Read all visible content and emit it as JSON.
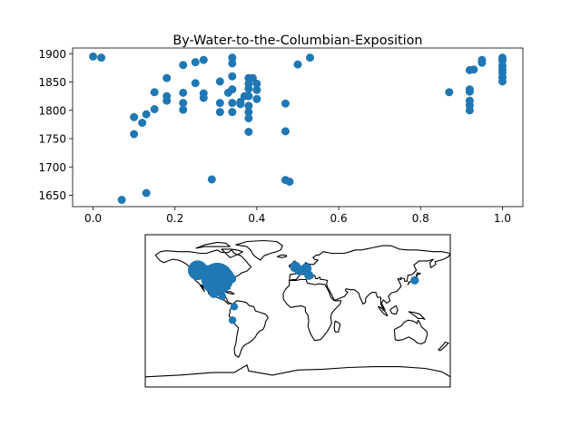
{
  "chart_data": [
    {
      "type": "scatter",
      "title": "By-Water-to-the-Columbian-Exposition",
      "xlabel": "",
      "ylabel": "",
      "xlim": [
        -0.05,
        1.05
      ],
      "ylim": [
        1630,
        1910
      ],
      "xticks": [
        "0.0",
        "0.2",
        "0.4",
        "0.6",
        "0.8",
        "1.0"
      ],
      "yticks": [
        "1650",
        "1700",
        "1750",
        "1800",
        "1850",
        "1900"
      ],
      "marker_color": "#1f77b4",
      "grid": false,
      "series": [
        {
          "points": [
            [
              0.0,
              1895
            ],
            [
              0.02,
              1893
            ],
            [
              0.07,
              1642
            ],
            [
              0.13,
              1654
            ],
            [
              0.1,
              1788
            ],
            [
              0.1,
              1758
            ],
            [
              0.13,
              1793
            ],
            [
              0.12,
              1778
            ],
            [
              0.15,
              1832
            ],
            [
              0.15,
              1802
            ],
            [
              0.18,
              1857
            ],
            [
              0.18,
              1825
            ],
            [
              0.18,
              1817
            ],
            [
              0.22,
              1880
            ],
            [
              0.22,
              1831
            ],
            [
              0.22,
              1813
            ],
            [
              0.22,
              1801
            ],
            [
              0.25,
              1885
            ],
            [
              0.25,
              1848
            ],
            [
              0.27,
              1889
            ],
            [
              0.27,
              1830
            ],
            [
              0.27,
              1822
            ],
            [
              0.29,
              1678
            ],
            [
              0.31,
              1851
            ],
            [
              0.31,
              1813
            ],
            [
              0.31,
              1797
            ],
            [
              0.34,
              1893
            ],
            [
              0.34,
              1883
            ],
            [
              0.34,
              1860
            ],
            [
              0.34,
              1837
            ],
            [
              0.33,
              1831
            ],
            [
              0.34,
              1813
            ],
            [
              0.34,
              1797
            ],
            [
              0.36,
              1811
            ],
            [
              0.36,
              1815
            ],
            [
              0.37,
              1825
            ],
            [
              0.38,
              1857
            ],
            [
              0.38,
              1847
            ],
            [
              0.38,
              1838
            ],
            [
              0.38,
              1825
            ],
            [
              0.38,
              1808
            ],
            [
              0.38,
              1797
            ],
            [
              0.38,
              1786
            ],
            [
              0.38,
              1762
            ],
            [
              0.39,
              1857
            ],
            [
              0.4,
              1847
            ],
            [
              0.4,
              1836
            ],
            [
              0.4,
              1820
            ],
            [
              0.47,
              1812
            ],
            [
              0.47,
              1763
            ],
            [
              0.47,
              1677
            ],
            [
              0.48,
              1674
            ],
            [
              0.5,
              1881
            ],
            [
              0.53,
              1893
            ],
            [
              0.87,
              1832
            ],
            [
              0.92,
              1871
            ],
            [
              0.93,
              1872
            ],
            [
              0.92,
              1837
            ],
            [
              0.92,
              1833
            ],
            [
              0.92,
              1817
            ],
            [
              0.92,
              1809
            ],
            [
              0.92,
              1800
            ],
            [
              0.95,
              1889
            ],
            [
              0.95,
              1884
            ],
            [
              1.0,
              1893
            ],
            [
              1.0,
              1888
            ],
            [
              1.0,
              1879
            ],
            [
              1.0,
              1872
            ],
            [
              1.0,
              1866
            ],
            [
              1.0,
              1858
            ],
            [
              1.0,
              1851
            ]
          ]
        }
      ]
    },
    {
      "type": "map",
      "projection": "equirectangular",
      "extent": {
        "lon": [
          -180,
          180
        ],
        "lat": [
          -90,
          90
        ]
      },
      "marker_color": "#1f77b4",
      "locations": [
        {
          "lon": -118,
          "lat": 48,
          "size": 2.6
        },
        {
          "lon": -105,
          "lat": 45,
          "size": 2.0
        },
        {
          "lon": -95,
          "lat": 38,
          "size": 4.2
        },
        {
          "lon": -85,
          "lat": 40,
          "size": 2.2
        },
        {
          "lon": -78,
          "lat": 38,
          "size": 1.2
        },
        {
          "lon": -99,
          "lat": 21,
          "size": 1.3
        },
        {
          "lon": -89,
          "lat": 17,
          "size": 1.0
        },
        {
          "lon": -75,
          "lat": 5,
          "size": 1.0
        },
        {
          "lon": -77,
          "lat": -11,
          "size": 1.0
        },
        {
          "lon": -3,
          "lat": 52,
          "size": 1.4
        },
        {
          "lon": 2,
          "lat": 48,
          "size": 1.3
        },
        {
          "lon": 10,
          "lat": 50,
          "size": 1.4
        },
        {
          "lon": 13,
          "lat": 42,
          "size": 1.2
        },
        {
          "lon": 138,
          "lat": 36,
          "size": 1.1
        }
      ]
    }
  ]
}
